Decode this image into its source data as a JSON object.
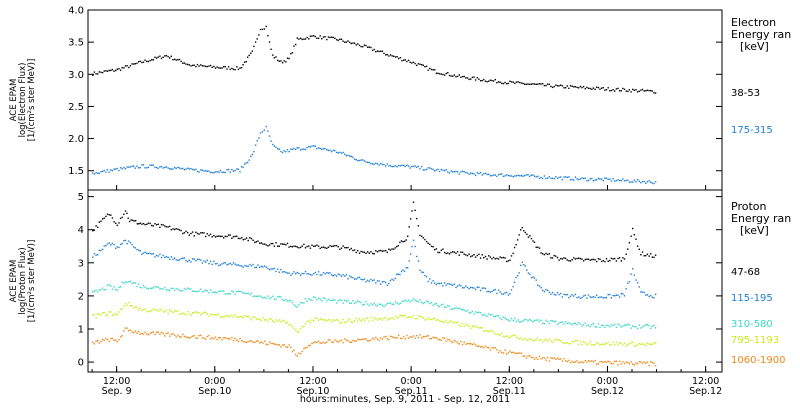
{
  "colors": {
    "black": "#000000",
    "blue": "#1f7fd8",
    "cyan": "#38d8c8",
    "yellowgreen": "#c8ec18",
    "orange": "#f08818"
  },
  "xaxis": {
    "ticks": [
      {
        "t": 0,
        "time": "12:00",
        "date": "Sep. 9"
      },
      {
        "t": 12,
        "time": "0:00",
        "date": "Sep.10"
      },
      {
        "t": 24,
        "time": "12:00",
        "date": "Sep.10"
      },
      {
        "t": 36,
        "time": "0:00",
        "date": "Sep.11"
      },
      {
        "t": 48,
        "time": "12:00",
        "date": "Sep.11"
      },
      {
        "t": 60,
        "time": "0:00",
        "date": "Sep.12"
      },
      {
        "t": 72,
        "time": "12:00",
        "date": "Sep.12"
      }
    ],
    "label": "hours:minutes, Sep.  9, 2011 - Sep. 12, 2011",
    "range_hours_from_sep9_12utc": [
      -3.5,
      74
    ]
  },
  "chart_data": [
    {
      "type": "scatter",
      "panel": "electron",
      "ylabel": [
        "ACE EPAM",
        "log(Electron Flux)",
        "[1/(cm²s ster MeV)]"
      ],
      "ylim": [
        1.2,
        4.0
      ],
      "yticks": [
        "1.5",
        "2.0",
        "2.5",
        "3.0",
        "3.5",
        "4.0"
      ],
      "legend_title": [
        "Electron",
        "Energy ran",
        "[keV]"
      ],
      "series": [
        {
          "name": "38-53",
          "color": "#000000",
          "x": [
            -3,
            0,
            3,
            6,
            9,
            12,
            15,
            16.5,
            17.5,
            18.2,
            18.6,
            19,
            20,
            21,
            22,
            24,
            27,
            30,
            33,
            36,
            39,
            42,
            45,
            48,
            51,
            54,
            57,
            60,
            63,
            66
          ],
          "y": [
            3.02,
            3.08,
            3.2,
            3.3,
            3.15,
            3.12,
            3.1,
            3.35,
            3.72,
            3.75,
            3.5,
            3.3,
            3.2,
            3.25,
            3.55,
            3.6,
            3.55,
            3.45,
            3.32,
            3.2,
            3.05,
            2.97,
            2.92,
            2.88,
            2.85,
            2.82,
            2.8,
            2.78,
            2.76,
            2.74
          ]
        },
        {
          "name": "175-315",
          "color": "#1f7fd8",
          "x": [
            -3,
            0,
            3,
            6,
            9,
            12,
            15,
            16.5,
            17.5,
            18.2,
            19,
            20,
            22,
            24,
            27,
            30,
            33,
            36,
            39,
            42,
            45,
            48,
            51,
            54,
            57,
            60,
            63,
            66
          ],
          "y": [
            1.47,
            1.53,
            1.58,
            1.57,
            1.52,
            1.5,
            1.52,
            1.75,
            2.1,
            2.18,
            1.9,
            1.8,
            1.85,
            1.88,
            1.8,
            1.66,
            1.6,
            1.57,
            1.52,
            1.48,
            1.45,
            1.44,
            1.42,
            1.4,
            1.38,
            1.37,
            1.35,
            1.33
          ]
        }
      ]
    },
    {
      "type": "scatter",
      "panel": "proton",
      "ylabel": [
        "ACE EPAM",
        "log(Proton Flux)",
        "[1/(cm²s ster MeV)]"
      ],
      "ylim": [
        -0.3,
        5.2
      ],
      "yticks": [
        "0",
        "1",
        "2",
        "3",
        "4",
        "5"
      ],
      "legend_title": [
        "Proton",
        "Energy ran",
        "[keV]"
      ],
      "series": [
        {
          "name": "47-68",
          "color": "#000000",
          "x": [
            -3,
            -1,
            0,
            1,
            1.5,
            3,
            6,
            9,
            12,
            15,
            18,
            21,
            24,
            27,
            30,
            33,
            35.5,
            36.2,
            37,
            38,
            39,
            42,
            45,
            48,
            49.5,
            51,
            52,
            54,
            57,
            60,
            62,
            63,
            64,
            66
          ],
          "y": [
            4.0,
            4.5,
            4.2,
            4.6,
            4.3,
            4.2,
            4.1,
            3.9,
            3.85,
            3.8,
            3.6,
            3.55,
            3.5,
            3.5,
            3.35,
            3.35,
            3.8,
            4.8,
            3.9,
            3.6,
            3.4,
            3.3,
            3.2,
            3.1,
            4.1,
            3.6,
            3.3,
            3.15,
            3.1,
            3.1,
            3.15,
            4.0,
            3.3,
            3.2
          ]
        },
        {
          "name": "115-195",
          "color": "#1f7fd8",
          "x": [
            -3,
            -1,
            0,
            1,
            3,
            6,
            9,
            12,
            15,
            18,
            21,
            24,
            27,
            30,
            33,
            35.5,
            36.2,
            37,
            38,
            39,
            42,
            45,
            48,
            49.5,
            51,
            52,
            54,
            57,
            60,
            62,
            63,
            64,
            66
          ],
          "y": [
            3.2,
            3.6,
            3.5,
            3.7,
            3.3,
            3.2,
            3.1,
            3.0,
            2.95,
            2.9,
            2.7,
            2.7,
            2.65,
            2.5,
            2.4,
            2.9,
            3.7,
            2.8,
            2.5,
            2.4,
            2.3,
            2.2,
            2.1,
            3.0,
            2.5,
            2.2,
            2.05,
            2.0,
            2.0,
            2.05,
            2.8,
            2.1,
            2.0
          ]
        },
        {
          "name": "310-580",
          "color": "#38d8c8",
          "x": [
            -3,
            -1,
            0,
            1,
            3,
            6,
            9,
            12,
            15,
            18,
            21,
            22,
            23,
            24,
            27,
            30,
            33,
            36,
            39,
            42,
            45,
            48,
            51,
            54,
            57,
            60,
            63,
            66
          ],
          "y": [
            2.1,
            2.3,
            2.2,
            2.5,
            2.3,
            2.25,
            2.2,
            2.15,
            2.1,
            2.0,
            1.9,
            1.7,
            1.9,
            1.95,
            1.85,
            1.8,
            1.75,
            1.9,
            1.75,
            1.6,
            1.45,
            1.3,
            1.25,
            1.2,
            1.15,
            1.12,
            1.1,
            1.08
          ]
        },
        {
          "name": "795-1193",
          "color": "#c8ec18",
          "x": [
            -3,
            -1,
            0,
            1,
            3,
            6,
            9,
            12,
            15,
            18,
            21,
            22,
            23,
            24,
            27,
            30,
            33,
            36,
            39,
            42,
            45,
            48,
            51,
            54,
            57,
            60,
            63,
            66
          ],
          "y": [
            1.4,
            1.5,
            1.45,
            1.8,
            1.6,
            1.55,
            1.5,
            1.45,
            1.4,
            1.3,
            1.2,
            0.9,
            1.2,
            1.3,
            1.25,
            1.3,
            1.35,
            1.4,
            1.3,
            1.15,
            1.0,
            0.8,
            0.7,
            0.65,
            0.6,
            0.58,
            0.56,
            0.55
          ]
        },
        {
          "name": "1060-1900",
          "color": "#f08818",
          "x": [
            -3,
            -1,
            0,
            1,
            3,
            6,
            9,
            12,
            15,
            18,
            21,
            22,
            23,
            24,
            27,
            30,
            33,
            36,
            39,
            42,
            45,
            48,
            51,
            54,
            57,
            60,
            63,
            66
          ],
          "y": [
            0.6,
            0.7,
            0.65,
            1.0,
            0.9,
            0.85,
            0.8,
            0.75,
            0.7,
            0.6,
            0.5,
            0.2,
            0.5,
            0.6,
            0.65,
            0.7,
            0.75,
            0.8,
            0.75,
            0.6,
            0.45,
            0.3,
            0.15,
            0.08,
            0.02,
            0.0,
            -0.02,
            -0.03
          ]
        }
      ]
    }
  ]
}
